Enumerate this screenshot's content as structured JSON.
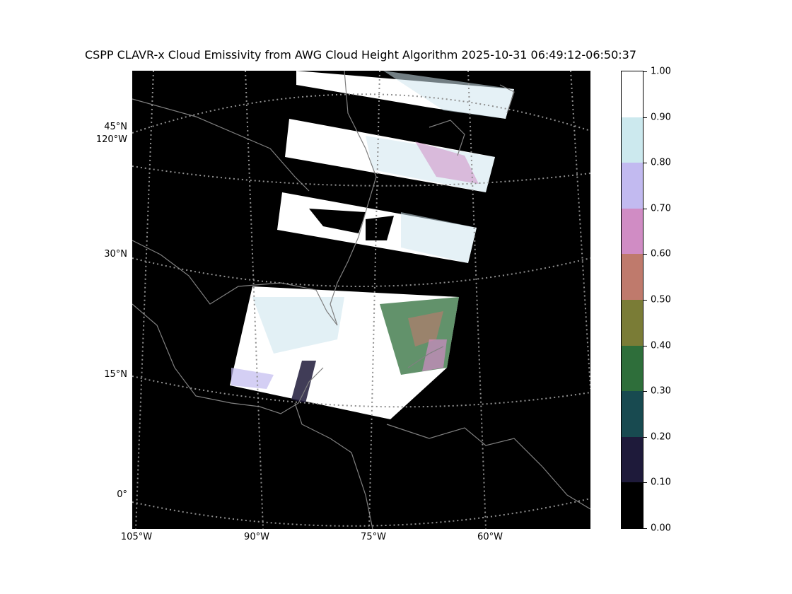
{
  "title": "CSPP CLAVR-x Cloud Emissivity from AWG Cloud Height Algorithm 2025-10-31 06:49:12-06:50:37",
  "map": {
    "background": "#000000",
    "coastline_color": "#808080",
    "gridline_color": "#909090",
    "lat_labels": [
      "45°N",
      "30°N",
      "15°N",
      "0°"
    ],
    "lat_lon_label_extra": "120°W",
    "lon_labels": [
      "105°W",
      "90°W",
      "75°W",
      "60°W"
    ]
  },
  "colorbar": {
    "tick_labels": [
      "0.00",
      "0.10",
      "0.20",
      "0.30",
      "0.40",
      "0.50",
      "0.60",
      "0.70",
      "0.80",
      "0.90",
      "1.00"
    ],
    "colors": [
      "#000000",
      "#1e1a3a",
      "#184a50",
      "#2e6e3a",
      "#7a7c36",
      "#bf7a6c",
      "#d08cc4",
      "#c2baf0",
      "#cce9ee",
      "#ffffff"
    ]
  }
}
